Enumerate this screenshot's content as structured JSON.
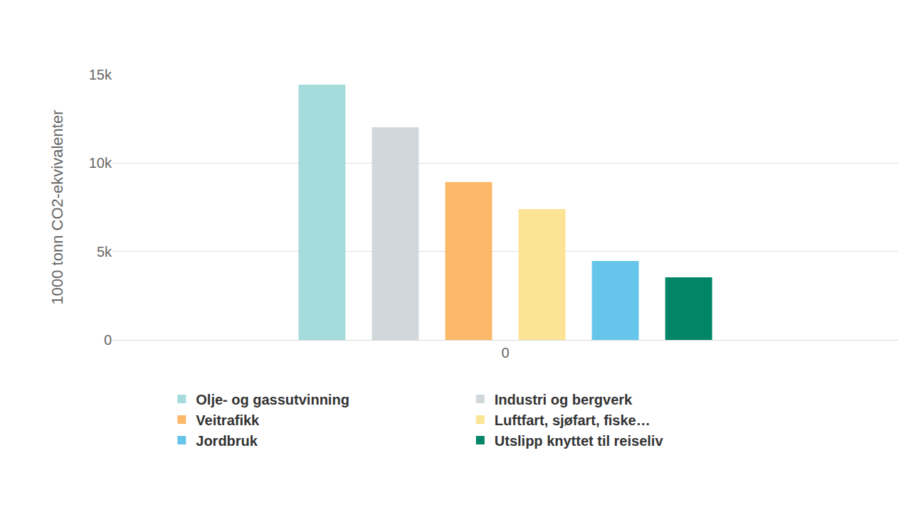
{
  "chart_data": {
    "type": "bar",
    "y_label": "1000 tonn CO2-ekvivalenter",
    "categories": [
      "0"
    ],
    "series": [
      {
        "name": "Olje- og gassutvinning",
        "color": "#a6dbdb",
        "values": [
          14440
        ]
      },
      {
        "name": "Industri og bergverk",
        "color": "#d1d8dc",
        "values": [
          12020
        ]
      },
      {
        "name": "Veitrafikk",
        "color": "#fdb86a",
        "values": [
          8930
        ]
      },
      {
        "name": "Luftfart, sjøfart, fiske…",
        "color": "#fbe494",
        "values": [
          7400
        ]
      },
      {
        "name": "Jordbruk",
        "color": "#66c5ea",
        "values": [
          4460
        ]
      },
      {
        "name": "Utslipp knyttet til reiseliv",
        "color": "#008566",
        "values": [
          3540
        ]
      }
    ],
    "ylim": [
      0,
      15000
    ],
    "yticks": [
      0,
      {
        "value": 5000,
        "label": "5k"
      },
      {
        "value": 10000,
        "label": "10k"
      },
      {
        "value": 15000,
        "label": "15k"
      }
    ],
    "grid": true,
    "legend": "bottom"
  }
}
